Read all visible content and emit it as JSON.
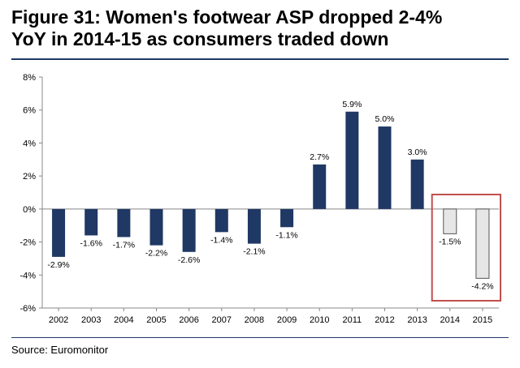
{
  "header": {
    "title_line1": "Figure 31: Women's footwear ASP dropped 2-4%",
    "title_line2": "YoY in 2014-15 as consumers traded down"
  },
  "footer": {
    "source": "Source: Euromonitor"
  },
  "colors": {
    "bar_main": "#1f3864",
    "bar_highlight_fill": "#e6e6e6",
    "bar_highlight_stroke": "#555555",
    "highlight_box": "#c0504d",
    "rule": "#1f3864"
  },
  "chart_data": {
    "type": "bar",
    "title": "Figure 31: Women's footwear ASP dropped 2-4% YoY in 2014-15 as consumers traded down",
    "xlabel": "",
    "ylabel": "",
    "ylim": [
      -6,
      8
    ],
    "yticks": [
      -6,
      -4,
      -2,
      0,
      2,
      4,
      6,
      8
    ],
    "ytick_labels": [
      "-6%",
      "-4%",
      "-2%",
      "0%",
      "2%",
      "4%",
      "6%",
      "8%"
    ],
    "grid": false,
    "legend": "none",
    "categories": [
      "2002",
      "2003",
      "2004",
      "2005",
      "2006",
      "2007",
      "2008",
      "2009",
      "2010",
      "2011",
      "2012",
      "2013",
      "2014",
      "2015"
    ],
    "values": [
      -2.9,
      -1.6,
      -1.7,
      -2.2,
      -2.6,
      -1.4,
      -2.1,
      -1.1,
      2.7,
      5.9,
      5.0,
      3.0,
      -1.5,
      -4.2
    ],
    "data_labels": [
      "-2.9%",
      "-1.6%",
      "-1.7%",
      "-2.2%",
      "-2.6%",
      "-1.4%",
      "-2.1%",
      "-1.1%",
      "2.7%",
      "5.9%",
      "5.0%",
      "3.0%",
      "-1.5%",
      "-4.2%"
    ],
    "highlighted_categories": [
      "2014",
      "2015"
    ]
  }
}
